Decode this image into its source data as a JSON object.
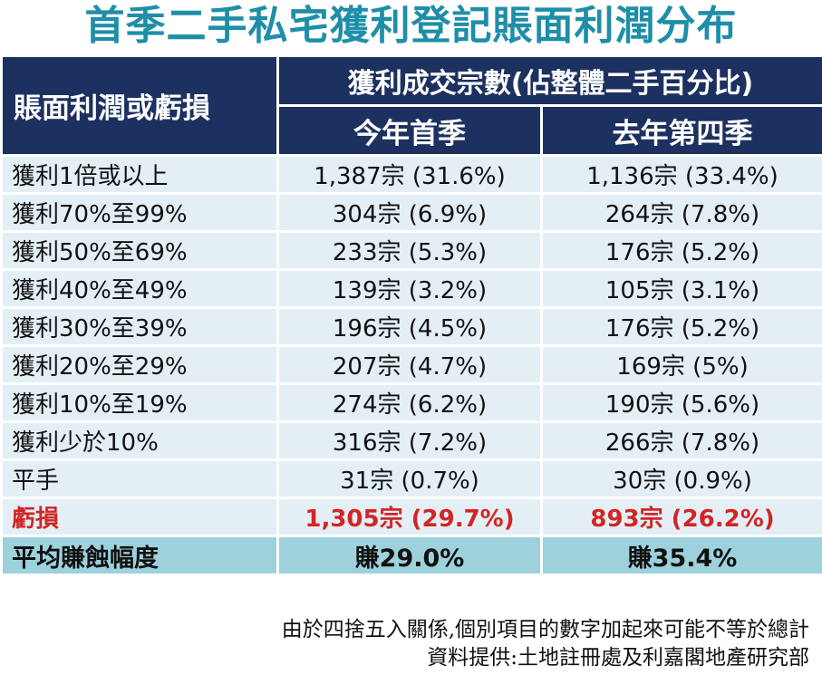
{
  "title": "首季二手私宅獲利登記賬面利潤分布",
  "header": {
    "row_label": "賬面利潤或虧損",
    "group": "獲利成交宗數(佔整體二手百分比)",
    "col1": "今年首季",
    "col2": "去年第四季"
  },
  "rows": [
    {
      "label": "獲利1倍或以上",
      "q1": "1,387宗 (31.6%)",
      "q4": "1,136宗 (33.4%)"
    },
    {
      "label": "獲利70%至99%",
      "q1": "304宗 (6.9%)",
      "q4": "264宗 (7.8%)"
    },
    {
      "label": "獲利50%至69%",
      "q1": "233宗 (5.3%)",
      "q4": "176宗 (5.2%)"
    },
    {
      "label": "獲利40%至49%",
      "q1": "139宗 (3.2%)",
      "q4": "105宗 (3.1%)"
    },
    {
      "label": "獲利30%至39%",
      "q1": "196宗 (4.5%)",
      "q4": "176宗 (5.2%)"
    },
    {
      "label": "獲利20%至29%",
      "q1": "207宗 (4.7%)",
      "q4": "169宗 (5%)"
    },
    {
      "label": "獲利10%至19%",
      "q1": "274宗 (6.2%)",
      "q4": "190宗 (5.6%)"
    },
    {
      "label": "獲利少於10%",
      "q1": "316宗 (7.2%)",
      "q4": "266宗 (7.8%)"
    },
    {
      "label": "平手",
      "q1": "31宗 (0.7%)",
      "q4": "30宗 (0.9%)"
    }
  ],
  "loss_row": {
    "label": "虧損",
    "q1": "1,305宗 (29.7%)",
    "q4": "893宗 (26.2%)"
  },
  "avg_row": {
    "label": "平均賺蝕幅度",
    "q1": "賺29.0%",
    "q4": "賺35.4%"
  },
  "notes": {
    "rounding": "由於四捨五入關係,個別項目的數字加起來可能不等於總計",
    "source": "資料提供:土地註冊處及利嘉閣地產研究部"
  },
  "colors": {
    "title": "#1f8ea8",
    "header_bg": "#1d3160",
    "row_bg": "#e3eff5",
    "avg_bg": "#9dd2dd",
    "loss_text": "#d22525"
  }
}
